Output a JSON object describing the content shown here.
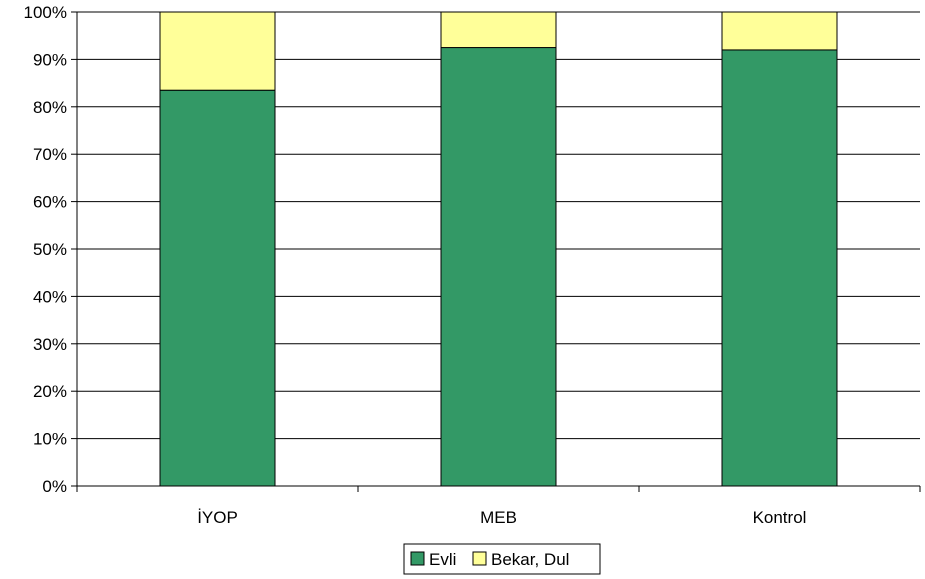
{
  "chart_data": {
    "type": "bar",
    "stacked": true,
    "percent_stacked": true,
    "categories": [
      "İYOP",
      "MEB",
      "Kontrol"
    ],
    "series": [
      {
        "name": "Evli",
        "values": [
          83.5,
          92.5,
          92.0
        ],
        "color": "#339966"
      },
      {
        "name": "Bekar, Dul",
        "values": [
          16.5,
          7.5,
          8.0
        ],
        "color": "#FFFF99"
      }
    ],
    "ylim": [
      0,
      100
    ],
    "yticks": [
      "0%",
      "10%",
      "20%",
      "30%",
      "40%",
      "50%",
      "60%",
      "70%",
      "80%",
      "90%",
      "100%"
    ],
    "grid": true,
    "legend": "bottom"
  }
}
